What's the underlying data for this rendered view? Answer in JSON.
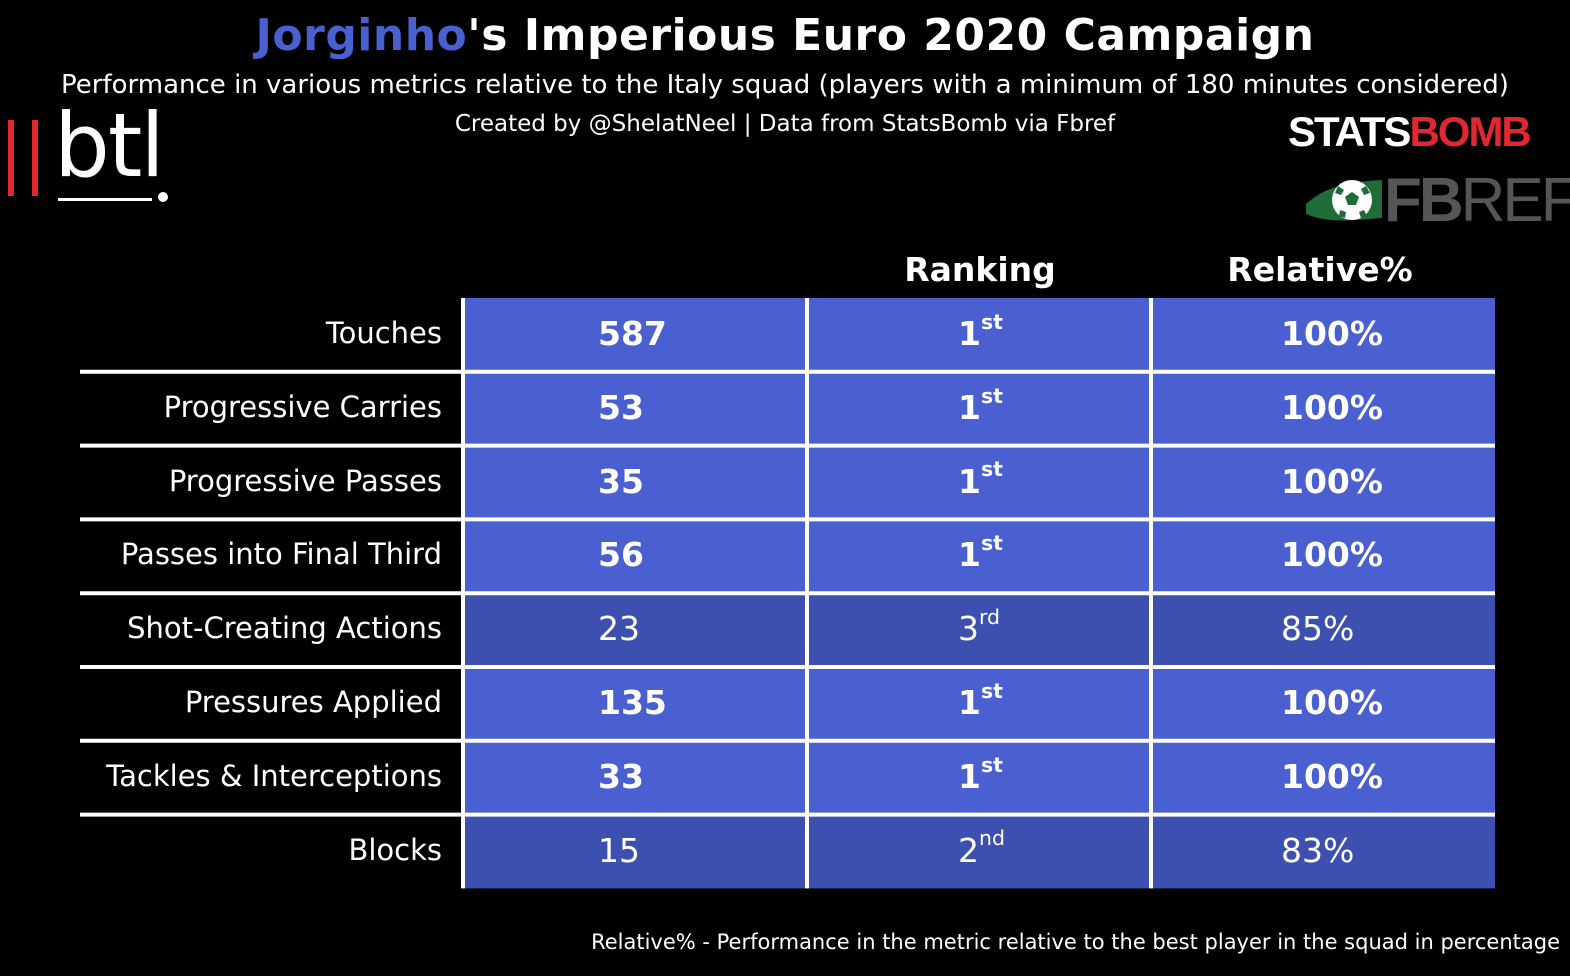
{
  "title": {
    "player": "Jorginho",
    "rest": "'s Imperious Euro 2020 Campaign"
  },
  "subtitle": "Performance in various metrics relative to the Italy squad (players with a minimum of 180 minutes considered)",
  "credits": "Created by @ShelatNeel | Data from StatsBomb via Fbref",
  "logos": {
    "btl": "btl",
    "statsbomb_left": "STATS",
    "statsbomb_right": "BOMB",
    "fbref_bold": "FB",
    "fbref_light": "REF"
  },
  "colors": {
    "player_highlight": "#4a5fd0",
    "top_rank_cell": "#4a5fd0",
    "other_rank_cell": "#3d50b0",
    "background": "#000000",
    "grid_line": "#ffffff",
    "logo_red": "#e0282f"
  },
  "chart_data": {
    "type": "table",
    "columns": [
      "",
      "Ranking",
      "Relative%"
    ],
    "rows": [
      {
        "metric": "Touches",
        "value": "587",
        "rank_num": "1",
        "rank_suffix": "st",
        "relative": "100%",
        "relative_value": 100,
        "top": true
      },
      {
        "metric": "Progressive Carries",
        "value": "53",
        "rank_num": "1",
        "rank_suffix": "st",
        "relative": "100%",
        "relative_value": 100,
        "top": true
      },
      {
        "metric": "Progressive Passes",
        "value": "35",
        "rank_num": "1",
        "rank_suffix": "st",
        "relative": "100%",
        "relative_value": 100,
        "top": true
      },
      {
        "metric": "Passes into Final Third",
        "value": "56",
        "rank_num": "1",
        "rank_suffix": "st",
        "relative": "100%",
        "relative_value": 100,
        "top": true
      },
      {
        "metric": "Shot-Creating Actions",
        "value": "23",
        "rank_num": "3",
        "rank_suffix": "rd",
        "relative": "85%",
        "relative_value": 85,
        "top": false
      },
      {
        "metric": "Pressures Applied",
        "value": "135",
        "rank_num": "1",
        "rank_suffix": "st",
        "relative": "100%",
        "relative_value": 100,
        "top": true
      },
      {
        "metric": "Tackles & Interceptions",
        "value": "33",
        "rank_num": "1",
        "rank_suffix": "st",
        "relative": "100%",
        "relative_value": 100,
        "top": true
      },
      {
        "metric": "Blocks",
        "value": "15",
        "rank_num": "2",
        "rank_suffix": "nd",
        "relative": "83%",
        "relative_value": 83,
        "top": false
      }
    ]
  },
  "footnote": "Relative% - Performance in the metric relative to the best player in the squad in percentage"
}
